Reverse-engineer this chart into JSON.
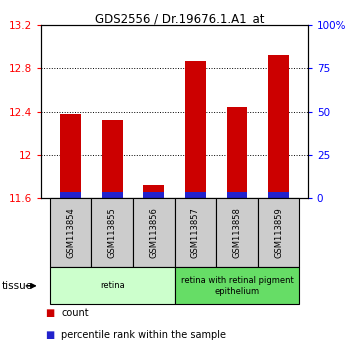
{
  "title": "GDS2556 / Dr.19676.1.A1_at",
  "samples": [
    "GSM113854",
    "GSM113855",
    "GSM113856",
    "GSM113857",
    "GSM113858",
    "GSM113859"
  ],
  "count_values": [
    12.38,
    12.32,
    11.72,
    12.87,
    12.44,
    12.92
  ],
  "ylim_left": [
    11.6,
    13.2
  ],
  "ylim_right": [
    0,
    100
  ],
  "yticks_left": [
    11.6,
    12.0,
    12.4,
    12.8,
    13.2
  ],
  "ytick_labels_left": [
    "11.6",
    "12",
    "12.4",
    "12.8",
    "13.2"
  ],
  "yticks_right": [
    0,
    25,
    50,
    75,
    100
  ],
  "ytick_labels_right": [
    "0",
    "25",
    "50",
    "75",
    "100%"
  ],
  "bar_bottom": 11.6,
  "blue_height": 0.055,
  "red_color": "#cc0000",
  "blue_color": "#2222cc",
  "tissue_groups": [
    {
      "label": "retina",
      "start": 0,
      "end": 3,
      "color": "#ccffcc"
    },
    {
      "label": "retina with retinal pigment\nepithelium",
      "start": 3,
      "end": 6,
      "color": "#66dd66"
    }
  ],
  "tissue_label": "tissue",
  "legend_items": [
    {
      "color": "#cc0000",
      "label": "count"
    },
    {
      "color": "#2222cc",
      "label": "percentile rank within the sample"
    }
  ],
  "background_color": "#ffffff",
  "plot_bg_color": "#ffffff",
  "sample_box_color": "#cccccc",
  "bar_width": 0.5,
  "xlim": [
    -0.7,
    5.7
  ]
}
